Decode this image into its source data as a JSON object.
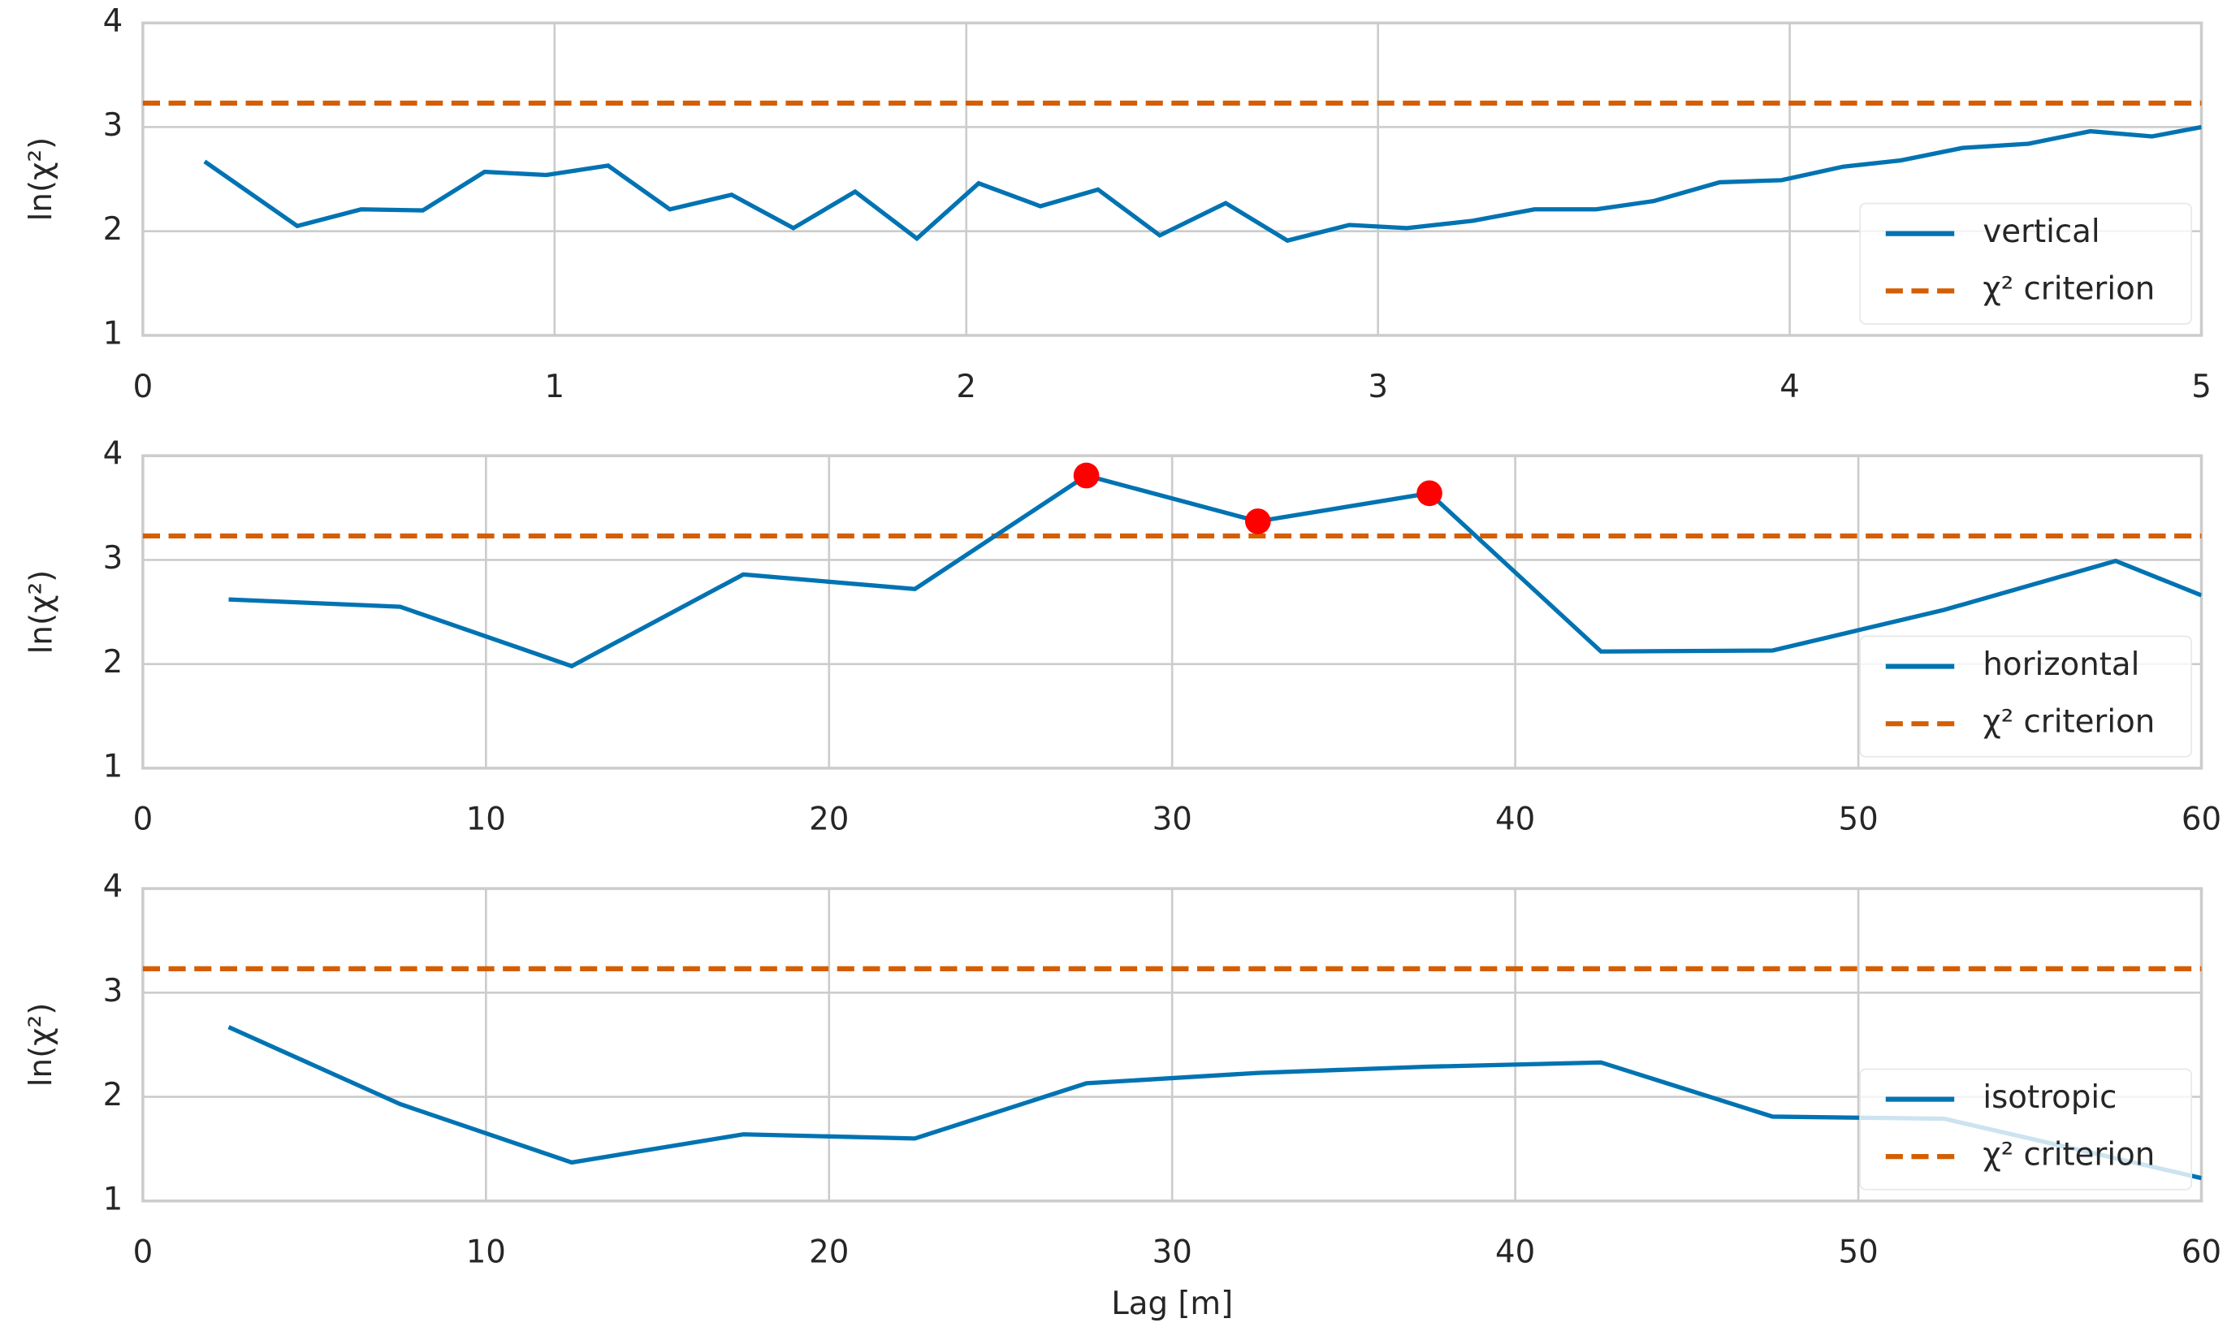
{
  "chart_data": [
    {
      "type": "line",
      "ylabel": "ln(χ²)",
      "xlim": [
        0,
        5
      ],
      "ylim": [
        1,
        4
      ],
      "xticks": [
        0,
        1,
        2,
        3,
        4,
        5
      ],
      "yticks": [
        1,
        2,
        3,
        4
      ],
      "grid": true,
      "legend": "lower right",
      "x": [
        0.15,
        0.375,
        0.53,
        0.68,
        0.83,
        0.98,
        1.13,
        1.28,
        1.43,
        1.58,
        1.73,
        1.88,
        2.03,
        2.18,
        2.32,
        2.47,
        2.63,
        2.78,
        2.93,
        3.07,
        3.23,
        3.38,
        3.53,
        3.67,
        3.83,
        3.98,
        4.13,
        4.27,
        4.42,
        4.58,
        4.73,
        4.88,
        5.0
      ],
      "series": [
        {
          "name": "vertical",
          "color": "#0173b2",
          "values": [
            2.67,
            2.05,
            2.21,
            2.2,
            2.57,
            2.54,
            2.63,
            2.21,
            2.35,
            2.03,
            2.38,
            1.93,
            2.46,
            2.24,
            2.4,
            1.96,
            2.27,
            1.91,
            2.06,
            2.03,
            2.1,
            2.21,
            2.21,
            2.29,
            2.47,
            2.49,
            2.62,
            2.68,
            2.8,
            2.84,
            2.96,
            2.91,
            3.0
          ]
        }
      ],
      "threshold": {
        "name": "χ² criterion",
        "color": "#d55e00",
        "value": 3.23
      }
    },
    {
      "type": "line",
      "ylabel": "ln(χ²)",
      "xlim": [
        0,
        60
      ],
      "ylim": [
        1,
        4
      ],
      "xticks": [
        0,
        10,
        20,
        30,
        40,
        50,
        60
      ],
      "yticks": [
        1,
        2,
        3,
        4
      ],
      "grid": true,
      "legend": "lower right",
      "x": [
        2.5,
        7.5,
        12.5,
        17.5,
        22.5,
        27.5,
        32.5,
        37.5,
        42.5,
        47.5,
        52.5,
        57.5,
        60
      ],
      "series": [
        {
          "name": "horizontal",
          "color": "#0173b2",
          "values": [
            2.62,
            2.55,
            1.98,
            2.86,
            2.72,
            3.81,
            3.37,
            3.64,
            2.12,
            2.13,
            2.52,
            2.99,
            2.66
          ]
        }
      ],
      "highlight": {
        "color": "#ff0000",
        "x": [
          27.5,
          32.5,
          37.5
        ],
        "values": [
          3.81,
          3.37,
          3.64
        ]
      },
      "threshold": {
        "name": "χ² criterion",
        "color": "#d55e00",
        "value": 3.23
      }
    },
    {
      "type": "line",
      "ylabel": "ln(χ²)",
      "xlabel": "Lag [m]",
      "xlim": [
        0,
        60
      ],
      "ylim": [
        1,
        4
      ],
      "xticks": [
        0,
        10,
        20,
        30,
        40,
        50,
        60
      ],
      "yticks": [
        1,
        2,
        3,
        4
      ],
      "grid": true,
      "legend": "lower right",
      "x": [
        2.5,
        7.5,
        12.5,
        17.5,
        22.5,
        27.5,
        32.5,
        37.5,
        42.5,
        47.5,
        52.5,
        60
      ],
      "series": [
        {
          "name": "isotropic",
          "color": "#0173b2",
          "values": [
            2.67,
            1.93,
            1.37,
            1.64,
            1.6,
            2.13,
            2.23,
            2.29,
            2.33,
            1.81,
            1.79,
            1.22
          ]
        }
      ],
      "threshold": {
        "name": "χ² criterion",
        "color": "#d55e00",
        "value": 3.23
      }
    }
  ]
}
